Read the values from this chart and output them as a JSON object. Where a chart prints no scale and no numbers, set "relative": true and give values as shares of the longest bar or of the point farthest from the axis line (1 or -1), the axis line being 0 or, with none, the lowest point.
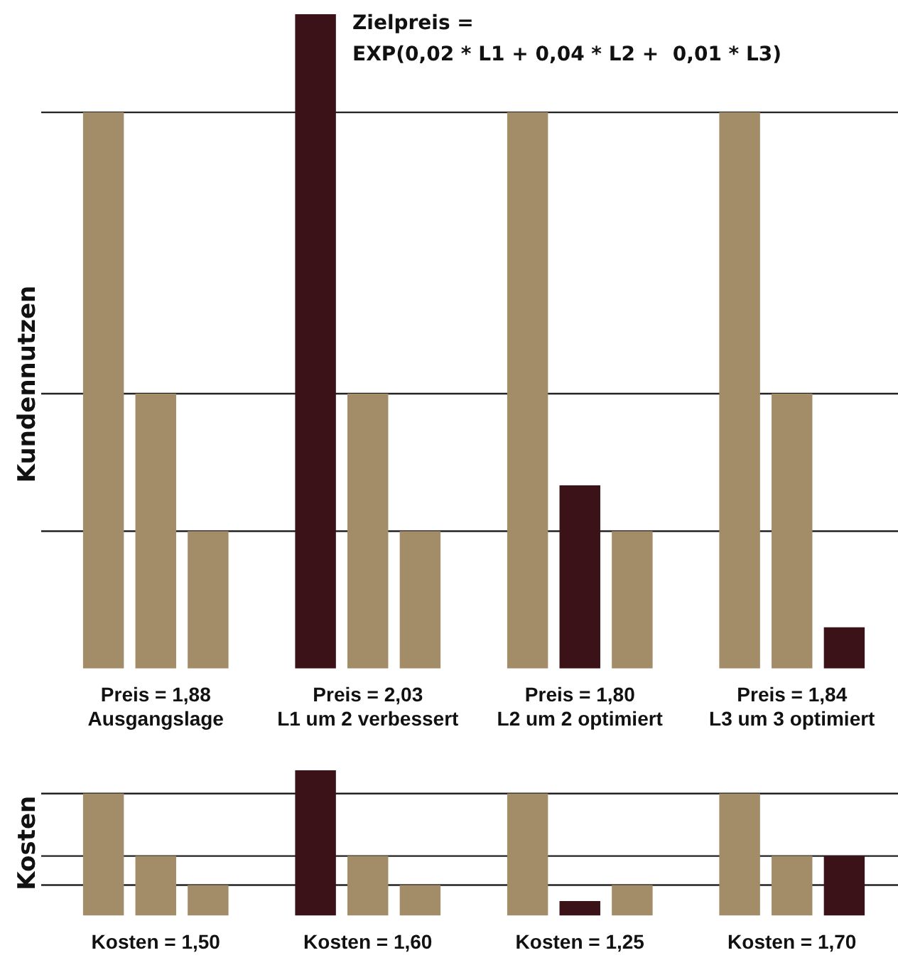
{
  "chart_data": [
    {
      "type": "bar",
      "relative": true,
      "ylabel": "Kundennutzen",
      "legend": false,
      "annotations": [
        "Zielpreis =\nEXP(0,02 * L1 + 0,04 * L2 +  0,01 * L3)"
      ],
      "categories": [
        "Preis = 1,88\nAusgangslage",
        "Preis = 2,03\nL1 um 2 verbessert",
        "Preis = 1,80\nL2 um 2 optimiert",
        "Preis = 1,84\nL3 um 3 optimiert"
      ],
      "series": [
        {
          "colors": [
            "#a38d68",
            "#3b1218",
            "#a38d68",
            "#a38d68"
          ],
          "values": [
            0.85,
            1,
            0.85,
            0.85
          ]
        },
        {
          "colors": [
            "#a38d68",
            "#a38d68",
            "#3b1218",
            "#a38d68"
          ],
          "values": [
            0.42,
            0.42,
            0.28,
            0.42
          ]
        },
        {
          "colors": [
            "#a38d68",
            "#a38d68",
            "#a38d68",
            "#3b1218"
          ],
          "values": [
            0.21,
            0.21,
            0.21,
            0.063
          ]
        }
      ],
      "ref_lines": [
        {
          "axis": "y",
          "value": 0.85,
          "color": "#222222"
        },
        {
          "axis": "y",
          "value": 0.42,
          "color": "#222222"
        },
        {
          "axis": "y",
          "value": 0.21,
          "color": "#222222"
        }
      ]
    },
    {
      "type": "bar",
      "relative": true,
      "ylabel": "Kosten",
      "legend": false,
      "categories": [
        "Kosten = 1,50",
        "Kosten = 1,60",
        "Kosten = 1,25",
        "Kosten = 1,70"
      ],
      "series": [
        {
          "colors": [
            "#a38d68",
            "#3b1218",
            "#a38d68",
            "#a38d68"
          ],
          "values": [
            0.84,
            1,
            0.84,
            0.84
          ]
        },
        {
          "colors": [
            "#a38d68",
            "#a38d68",
            "#3b1218",
            "#a38d68"
          ],
          "values": [
            0.41,
            0.41,
            0.1,
            0.41
          ]
        },
        {
          "colors": [
            "#a38d68",
            "#a38d68",
            "#a38d68",
            "#3b1218"
          ],
          "values": [
            0.21,
            0.21,
            0.21,
            0.41
          ]
        }
      ],
      "ref_lines": [
        {
          "axis": "y",
          "value": 0.84,
          "color": "#222222"
        },
        {
          "axis": "y",
          "value": 0.41,
          "color": "#222222"
        },
        {
          "axis": "y",
          "value": 0.21,
          "color": "#222222"
        }
      ]
    }
  ]
}
